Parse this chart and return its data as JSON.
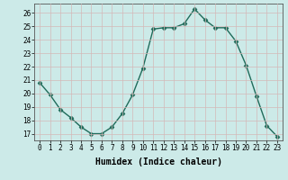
{
  "x": [
    0,
    1,
    2,
    3,
    4,
    5,
    6,
    7,
    8,
    9,
    10,
    11,
    12,
    13,
    14,
    15,
    16,
    17,
    18,
    19,
    20,
    21,
    22,
    23
  ],
  "y": [
    20.8,
    19.9,
    18.8,
    18.2,
    17.5,
    17.0,
    17.0,
    17.5,
    18.5,
    19.9,
    21.9,
    24.8,
    24.9,
    24.9,
    25.2,
    26.3,
    25.5,
    24.9,
    24.9,
    23.9,
    22.1,
    19.8,
    17.6,
    16.8
  ],
  "line_color": "#1f6b5a",
  "marker": "D",
  "markersize": 2.5,
  "linewidth": 1.0,
  "xlabel": "Humidex (Indice chaleur)",
  "xlabel_fontsize": 7,
  "xlim": [
    -0.5,
    23.5
  ],
  "ylim": [
    16.5,
    26.7
  ],
  "yticks": [
    17,
    18,
    19,
    20,
    21,
    22,
    23,
    24,
    25,
    26
  ],
  "xticks": [
    0,
    1,
    2,
    3,
    4,
    5,
    6,
    7,
    8,
    9,
    10,
    11,
    12,
    13,
    14,
    15,
    16,
    17,
    18,
    19,
    20,
    21,
    22,
    23
  ],
  "background_color": "#cceae8",
  "grid_color": "#c0d8d8",
  "tick_fontsize": 5.5
}
